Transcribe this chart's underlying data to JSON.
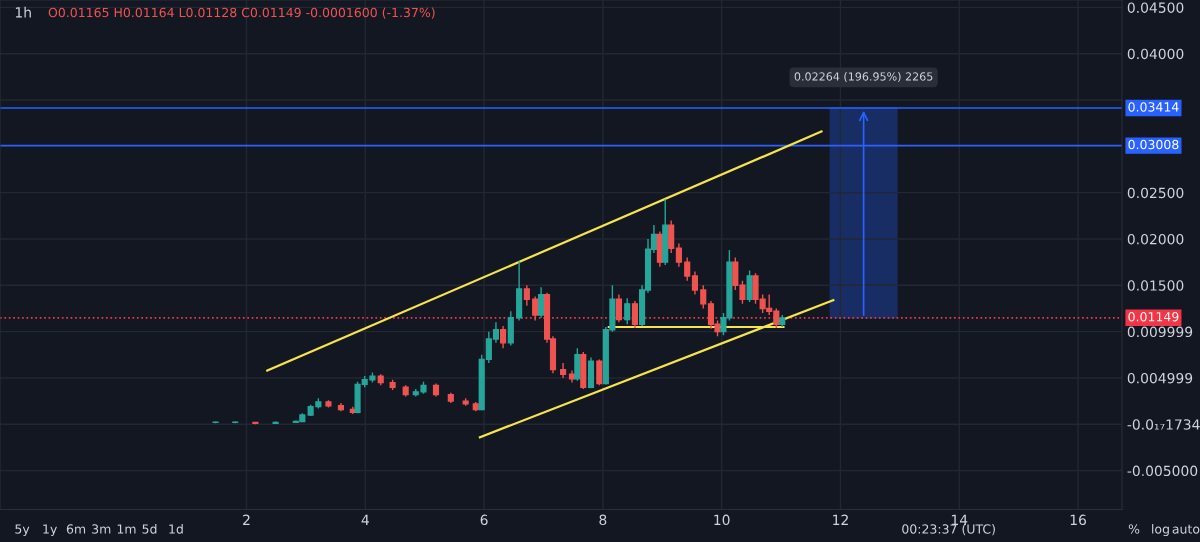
{
  "chart_data": {
    "type": "candlestick",
    "title": "1h",
    "subtitle": "O0.01165 H0.01164 L0.01128 C0.01149 -0.0001600 (-1.37%)",
    "x": [
      1.48,
      1.81,
      2.15,
      2.49,
      2.83,
      2.94,
      3.08,
      3.21,
      3.38,
      3.59,
      3.79,
      3.87,
      3.99,
      4.12,
      4.26,
      4.46,
      4.68,
      4.85,
      4.98,
      5.19,
      5.44,
      5.69,
      5.86,
      5.96,
      6.08,
      6.2,
      6.32,
      6.45,
      6.59,
      6.72,
      6.86,
      6.96,
      7.06,
      7.16,
      7.33,
      7.48,
      7.57,
      7.67,
      7.8,
      7.94,
      8.05,
      8.16,
      8.27,
      8.41,
      8.54,
      8.66,
      8.76,
      8.86,
      8.96,
      9.05,
      9.15,
      9.28,
      9.42,
      9.55,
      9.69,
      9.82,
      9.93,
      10.03,
      10.13,
      10.23,
      10.35,
      10.47,
      10.57,
      10.69,
      10.8,
      10.92,
      11.02
    ],
    "ohlc": [
      [
        0.0002,
        0.0003,
        0.0001,
        0.0002
      ],
      [
        0.0002,
        0.0003,
        0.0001,
        0.0002
      ],
      [
        0.0002,
        0.0002,
        0.0,
        0.0001
      ],
      [
        0.0001,
        0.0003,
        0.0001,
        0.0002
      ],
      [
        0.0002,
        0.0004,
        0.0002,
        0.0003
      ],
      [
        0.0003,
        0.0012,
        0.0003,
        0.001
      ],
      [
        0.001,
        0.0021,
        0.0009,
        0.0019
      ],
      [
        0.0019,
        0.0028,
        0.0017,
        0.0024
      ],
      [
        0.0024,
        0.0026,
        0.0018,
        0.002
      ],
      [
        0.002,
        0.0023,
        0.0014,
        0.0016
      ],
      [
        0.0016,
        0.0019,
        0.0011,
        0.0013
      ],
      [
        0.0013,
        0.0046,
        0.0012,
        0.0043
      ],
      [
        0.0043,
        0.0052,
        0.004,
        0.0048
      ],
      [
        0.0048,
        0.0056,
        0.0045,
        0.0052
      ],
      [
        0.0052,
        0.0054,
        0.0042,
        0.0045
      ],
      [
        0.0045,
        0.0048,
        0.0037,
        0.004
      ],
      [
        0.004,
        0.0042,
        0.003,
        0.0032
      ],
      [
        0.0032,
        0.0038,
        0.003,
        0.0035
      ],
      [
        0.0035,
        0.0046,
        0.0033,
        0.0042
      ],
      [
        0.0042,
        0.0044,
        0.003,
        0.0032
      ],
      [
        0.0032,
        0.0034,
        0.0023,
        0.0025
      ],
      [
        0.0025,
        0.0028,
        0.002,
        0.0022
      ],
      [
        0.0022,
        0.0024,
        0.0014,
        0.0016
      ],
      [
        0.0016,
        0.0075,
        0.0015,
        0.007
      ],
      [
        0.007,
        0.01,
        0.0066,
        0.0092
      ],
      [
        0.0092,
        0.011,
        0.0088,
        0.0102
      ],
      [
        0.0102,
        0.0106,
        0.0082,
        0.0088
      ],
      [
        0.0088,
        0.0122,
        0.0085,
        0.0115
      ],
      [
        0.0115,
        0.0176,
        0.0112,
        0.0146
      ],
      [
        0.0146,
        0.015,
        0.0128,
        0.0135
      ],
      [
        0.0135,
        0.0138,
        0.0112,
        0.0118
      ],
      [
        0.0118,
        0.0148,
        0.0115,
        0.014
      ],
      [
        0.014,
        0.0142,
        0.0088,
        0.0092
      ],
      [
        0.0092,
        0.0095,
        0.0055,
        0.0059
      ],
      [
        0.0059,
        0.0066,
        0.005,
        0.0054
      ],
      [
        0.0054,
        0.0058,
        0.0045,
        0.0049
      ],
      [
        0.0049,
        0.0082,
        0.0047,
        0.0075
      ],
      [
        0.0075,
        0.0078,
        0.0038,
        0.004
      ],
      [
        0.004,
        0.0072,
        0.0039,
        0.0068
      ],
      [
        0.0068,
        0.007,
        0.0042,
        0.0044
      ],
      [
        0.0044,
        0.0105,
        0.0043,
        0.0102
      ],
      [
        0.0102,
        0.015,
        0.01,
        0.0135
      ],
      [
        0.0135,
        0.014,
        0.011,
        0.0113
      ],
      [
        0.0113,
        0.0136,
        0.0108,
        0.013
      ],
      [
        0.013,
        0.0133,
        0.0104,
        0.0108
      ],
      [
        0.0108,
        0.015,
        0.0106,
        0.0145
      ],
      [
        0.0145,
        0.02,
        0.0142,
        0.0189
      ],
      [
        0.0189,
        0.0215,
        0.0185,
        0.0205
      ],
      [
        0.0205,
        0.0208,
        0.017,
        0.0175
      ],
      [
        0.0175,
        0.0243,
        0.0172,
        0.0215
      ],
      [
        0.0215,
        0.022,
        0.0185,
        0.019
      ],
      [
        0.019,
        0.0195,
        0.017,
        0.0175
      ],
      [
        0.0175,
        0.018,
        0.0155,
        0.016
      ],
      [
        0.016,
        0.0165,
        0.014,
        0.0145
      ],
      [
        0.0145,
        0.015,
        0.0125,
        0.013
      ],
      [
        0.013,
        0.0133,
        0.0103,
        0.0108
      ],
      [
        0.0108,
        0.0112,
        0.0095,
        0.01
      ],
      [
        0.01,
        0.012,
        0.0096,
        0.0115
      ],
      [
        0.0115,
        0.0188,
        0.0112,
        0.0175
      ],
      [
        0.0175,
        0.018,
        0.0145,
        0.015
      ],
      [
        0.015,
        0.0155,
        0.013,
        0.0135
      ],
      [
        0.0135,
        0.0166,
        0.0132,
        0.016
      ],
      [
        0.016,
        0.0163,
        0.013,
        0.0135
      ],
      [
        0.0135,
        0.014,
        0.012,
        0.0125
      ],
      [
        0.0125,
        0.014,
        0.0118,
        0.0122
      ],
      [
        0.0122,
        0.0125,
        0.0104,
        0.0108
      ],
      [
        0.0108,
        0.0118,
        0.0105,
        0.01149
      ]
    ],
    "series": [
      {
        "type": "line",
        "color": "#f5e44c",
        "x": [
          2.35,
          11.68
        ],
        "values": [
          0.0058,
          0.0316
        ]
      },
      {
        "type": "line",
        "color": "#f5e44c",
        "x": [
          5.93,
          11.88
        ],
        "values": [
          -0.0014,
          0.0134
        ]
      },
      {
        "type": "line",
        "color": "#f5e44c",
        "x": [
          8.1,
          11.04
        ],
        "values": [
          0.0105,
          0.0105
        ]
      }
    ],
    "ref_lines": [
      {
        "axis": "y",
        "value": 0.03414,
        "label": "0.03414",
        "color": "#2962ff",
        "line_style": "solid"
      },
      {
        "axis": "y",
        "value": 0.03008,
        "label": "0.03008",
        "color": "#2962ff",
        "line_style": "solid"
      },
      {
        "axis": "y",
        "value": 0.01149,
        "label": "0.01149",
        "color": "#f23645",
        "line_style": "dotted"
      }
    ],
    "bands": [
      {
        "axis": "x",
        "from": 11.83,
        "to": 12.95,
        "color": "#2962ff"
      }
    ],
    "annotations": [
      "0.02264 (196.95%) 2265",
      "5y",
      "1y",
      "6m",
      "3m",
      "1m",
      "5d",
      "1d",
      "00:23:37 (UTC)",
      "%",
      "log",
      "auto"
    ],
    "xlim": [
      -2.15,
      16.74
    ],
    "xticks": [
      2,
      4,
      6,
      8,
      10,
      12,
      14,
      16
    ],
    "ylim": [
      -0.0092,
      0.0458
    ],
    "yticks": [
      {
        "value": -0.005,
        "label": "-0.005000"
      },
      {
        "value": 0,
        "label": "-0.0₁₇1734"
      },
      {
        "value": 0.004999,
        "label": "0.004999"
      },
      {
        "value": 0.009999,
        "label": "0.009999"
      },
      {
        "value": 0.015,
        "label": "0.01500"
      },
      {
        "value": 0.02,
        "label": "0.02000"
      },
      {
        "value": 0.025,
        "label": "0.02500"
      },
      {
        "value": 0.035,
        "label": null
      },
      {
        "value": 0.04,
        "label": "0.04000"
      },
      {
        "value": 0.045,
        "label": "0.04500"
      }
    ],
    "grid": true
  }
}
